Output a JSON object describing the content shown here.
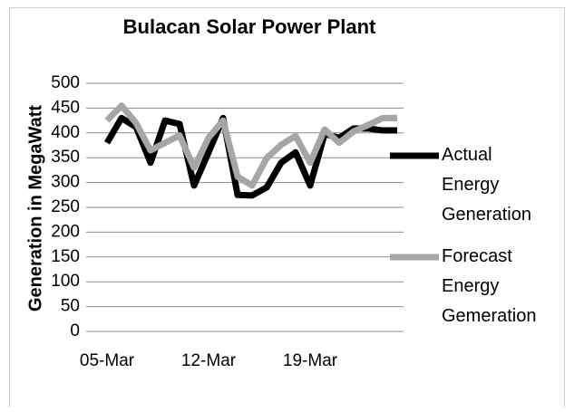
{
  "chart_data": {
    "type": "line",
    "title": "Bulacan Solar Power Plant",
    "y_label": "Generation in MegaWatt",
    "categories": [
      "05-Mar",
      null,
      null,
      null,
      null,
      null,
      null,
      "12-Mar",
      null,
      null,
      null,
      null,
      null,
      null,
      "19-Mar",
      null,
      null,
      null,
      null,
      null,
      null
    ],
    "series": [
      {
        "name": "Actual Energy Generation",
        "color": "#000000",
        "values": [
          380,
          430,
          412,
          340,
          425,
          418,
          294,
          361,
          430,
          275,
          274,
          290,
          340,
          361,
          294,
          398,
          390,
          409,
          409,
          405,
          405
        ]
      },
      {
        "name": "Forecast Energy Gemeration",
        "color": "#a6a6a6",
        "values": [
          425,
          455,
          420,
          365,
          380,
          395,
          330,
          390,
          425,
          312,
          294,
          349,
          376,
          394,
          340,
          407,
          380,
          403,
          416,
          430,
          430
        ]
      }
    ],
    "ylim": [
      0,
      500
    ],
    "yticks": [
      0,
      50,
      100,
      150,
      200,
      250,
      300,
      350,
      400,
      450,
      500
    ],
    "grid": true,
    "legend": "right"
  }
}
